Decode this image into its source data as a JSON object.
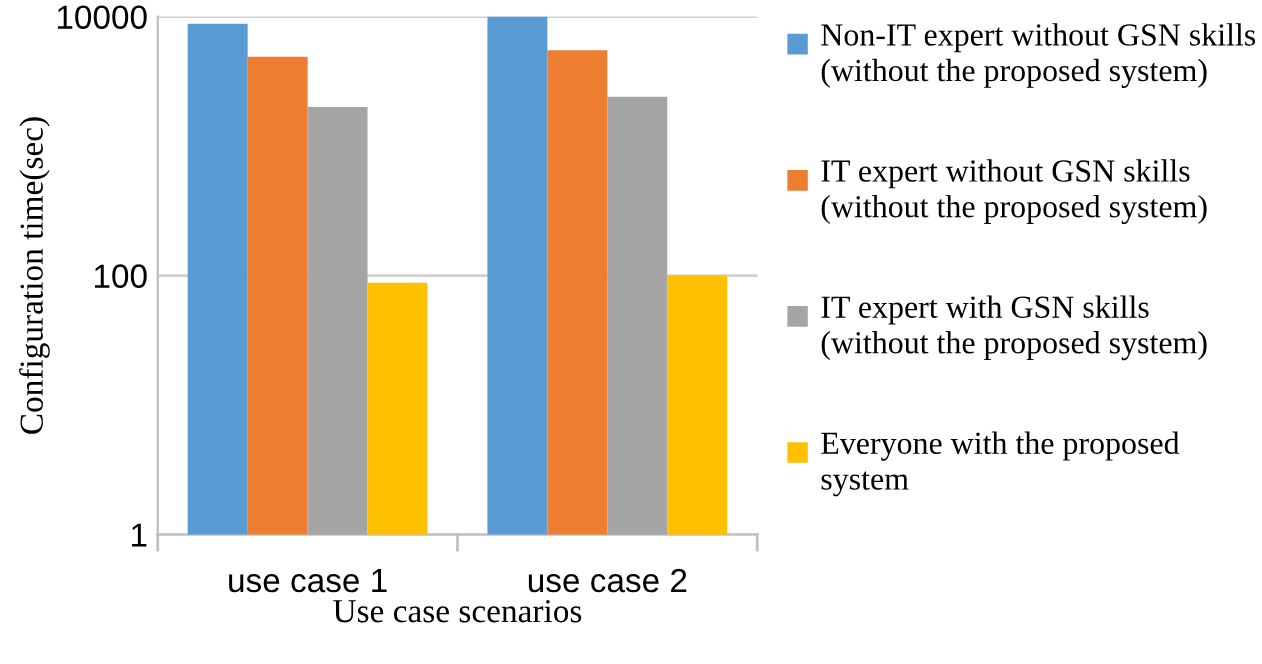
{
  "chart_data": {
    "type": "bar",
    "xlabel": "Use case scenarios",
    "ylabel": "Configuration time(sec)",
    "categories": [
      "use case 1",
      "use case 2"
    ],
    "series": [
      {
        "name": "Non-IT expert without GSN skills (without the proposed system)",
        "color": "#5b9bd5",
        "values": [
          8800,
          10000
        ]
      },
      {
        "name": "IT expert without GSN skills (without the proposed system)",
        "color": "#ed7d31",
        "values": [
          4900,
          5500
        ]
      },
      {
        "name": "IT expert with GSN skills (without the proposed system)",
        "color": "#a5a5a5",
        "values": [
          2000,
          2400
        ]
      },
      {
        "name": "Everyone with the proposed system",
        "color": "#ffc000",
        "values": [
          88,
          100
        ]
      }
    ],
    "log": "y",
    "ylim": [
      1,
      10000
    ],
    "yticks": [
      1,
      100,
      10000
    ],
    "grid": "y",
    "legend": "right"
  }
}
